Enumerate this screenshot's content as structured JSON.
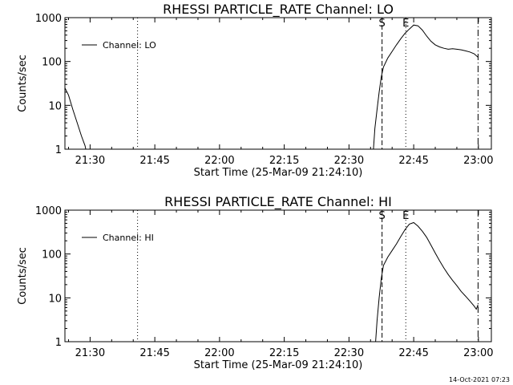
{
  "chart_data": [
    {
      "type": "line",
      "title": "RHESSI PARTICLE_RATE Channel: LO",
      "xlabel": "Start Time (25-Mar-09 21:24:10)",
      "ylabel": "Counts/sec",
      "yscale": "log",
      "ylim": [
        1,
        1000
      ],
      "xlim": [
        "21:24:10",
        "23:03:00"
      ],
      "xticks": [
        "21:30",
        "21:45",
        "22:00",
        "22:15",
        "22:30",
        "22:45",
        "23:00"
      ],
      "yticks": [
        "1",
        "10",
        "100",
        "1000"
      ],
      "legend": "top-left",
      "grid": false,
      "markers": [
        {
          "time": "21:41:00",
          "style": "dotted",
          "label": ""
        },
        {
          "time": "22:37:40",
          "style": "dashed",
          "label": "S"
        },
        {
          "time": "22:43:10",
          "style": "dotted",
          "label": "E"
        },
        {
          "time": "22:59:55",
          "style": "dash-dot",
          "label": ""
        }
      ],
      "series": [
        {
          "name": "Channel: LO",
          "x": [
            "21:24:10",
            "21:25:00",
            "21:26:00",
            "21:27:00",
            "21:28:00",
            "21:28:50",
            "21:29:00",
            "22:35:40",
            "22:36:00",
            "22:36:30",
            "22:37:00",
            "22:37:30",
            "22:38:00",
            "22:39:00",
            "22:40:00",
            "22:41:00",
            "22:42:00",
            "22:43:00",
            "22:44:00",
            "22:45:00",
            "22:46:00",
            "22:47:00",
            "22:48:00",
            "22:49:00",
            "22:50:00",
            "22:51:00",
            "22:52:00",
            "22:53:00",
            "22:54:00",
            "22:55:00",
            "22:56:00",
            "22:57:00",
            "22:58:00",
            "22:59:00",
            "22:59:55"
          ],
          "y": [
            25,
            17,
            8,
            4,
            2,
            1.2,
            1,
            1,
            3,
            8,
            20,
            45,
            75,
            120,
            170,
            240,
            330,
            440,
            550,
            680,
            650,
            520,
            380,
            290,
            240,
            215,
            200,
            190,
            195,
            190,
            185,
            175,
            165,
            150,
            125
          ]
        }
      ]
    },
    {
      "type": "line",
      "title": "RHESSI PARTICLE_RATE Channel: HI",
      "xlabel": "Start Time (25-Mar-09 21:24:10)",
      "ylabel": "Counts/sec",
      "yscale": "log",
      "ylim": [
        1,
        1000
      ],
      "xlim": [
        "21:24:10",
        "23:03:00"
      ],
      "xticks": [
        "21:30",
        "21:45",
        "22:00",
        "22:15",
        "22:30",
        "22:45",
        "23:00"
      ],
      "yticks": [
        "1",
        "10",
        "100",
        "1000"
      ],
      "legend": "top-left",
      "grid": false,
      "markers": [
        {
          "time": "21:41:00",
          "style": "dotted",
          "label": ""
        },
        {
          "time": "22:37:40",
          "style": "dashed",
          "label": "S"
        },
        {
          "time": "22:43:10",
          "style": "dotted",
          "label": "E"
        },
        {
          "time": "22:59:55",
          "style": "dash-dot",
          "label": ""
        }
      ],
      "series": [
        {
          "name": "Channel: HI",
          "x": [
            "22:36:10",
            "22:36:30",
            "22:37:00",
            "22:37:30",
            "22:38:00",
            "22:39:00",
            "22:40:00",
            "22:41:00",
            "22:42:00",
            "22:43:00",
            "22:44:00",
            "22:45:00",
            "22:46:00",
            "22:47:00",
            "22:48:00",
            "22:49:00",
            "22:50:00",
            "22:51:00",
            "22:52:00",
            "22:53:00",
            "22:54:00",
            "22:55:00",
            "22:56:00",
            "22:57:00",
            "22:58:00",
            "22:59:00",
            "22:59:30",
            "22:59:55"
          ],
          "y": [
            1,
            3,
            10,
            28,
            55,
            85,
            120,
            170,
            250,
            360,
            480,
            520,
            430,
            330,
            240,
            160,
            105,
            70,
            48,
            34,
            25,
            19,
            14,
            11,
            8.5,
            6.5,
            5.5,
            7
          ]
        }
      ]
    }
  ],
  "footer": {
    "timestamp": "14-Oct-2021 07:23"
  }
}
